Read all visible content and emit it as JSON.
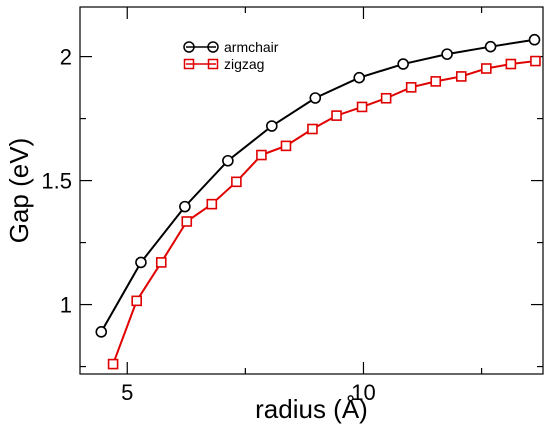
{
  "chart_data": {
    "type": "line",
    "xlabel": "radius (Å)",
    "ylabel": "Gap (eV)",
    "xlim": [
      4.0,
      13.8
    ],
    "ylim": [
      0.72,
      2.2
    ],
    "x_ticks": [
      5,
      10
    ],
    "x_tick_labels": [
      "5",
      "10"
    ],
    "y_ticks": [
      1.0,
      1.5,
      2.0
    ],
    "y_tick_labels": [
      "1",
      "1.5",
      "2"
    ],
    "grid": false,
    "legend_position": "top-left",
    "series": [
      {
        "name": "armchair",
        "color": "#000000",
        "marker": "circle",
        "x": [
          4.45,
          5.29,
          6.22,
          7.13,
          8.06,
          8.98,
          9.91,
          10.84,
          11.77,
          12.69,
          13.62
        ],
        "y": [
          0.89,
          1.17,
          1.395,
          1.58,
          1.72,
          1.833,
          1.915,
          1.97,
          2.01,
          2.04,
          2.068
        ]
      },
      {
        "name": "zigzag",
        "color": "#e00000",
        "marker": "square",
        "x": [
          4.7,
          5.2,
          5.72,
          6.26,
          6.79,
          7.31,
          7.84,
          8.36,
          8.92,
          9.43,
          9.97,
          10.48,
          11.01,
          11.53,
          12.07,
          12.6,
          13.12,
          13.64
        ],
        "y": [
          0.76,
          1.015,
          1.17,
          1.335,
          1.405,
          1.495,
          1.603,
          1.64,
          1.708,
          1.762,
          1.797,
          1.832,
          1.876,
          1.9,
          1.92,
          1.952,
          1.97,
          1.982
        ]
      }
    ]
  }
}
